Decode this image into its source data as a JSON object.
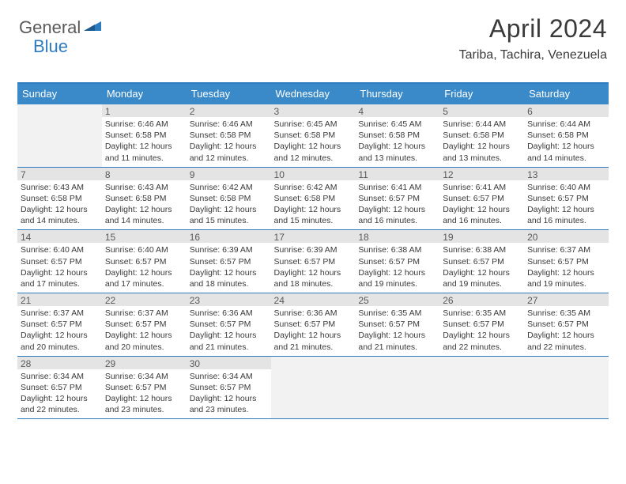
{
  "logo": {
    "general": "General",
    "blue": "Blue"
  },
  "title": "April 2024",
  "subtitle": "Tariba, Tachira, Venezuela",
  "colors": {
    "header_bg": "#3a8ac9",
    "accent_line": "#2e7cc0",
    "daynum_bg": "#e4e4e4",
    "empty_bg": "#f2f2f2",
    "text": "#3a3a3a"
  },
  "weekdays": [
    "Sunday",
    "Monday",
    "Tuesday",
    "Wednesday",
    "Thursday",
    "Friday",
    "Saturday"
  ],
  "weeks": [
    [
      {
        "n": "",
        "sr": "",
        "ss": "",
        "dl": ""
      },
      {
        "n": "1",
        "sr": "6:46 AM",
        "ss": "6:58 PM",
        "dl": "12 hours and 11 minutes."
      },
      {
        "n": "2",
        "sr": "6:46 AM",
        "ss": "6:58 PM",
        "dl": "12 hours and 12 minutes."
      },
      {
        "n": "3",
        "sr": "6:45 AM",
        "ss": "6:58 PM",
        "dl": "12 hours and 12 minutes."
      },
      {
        "n": "4",
        "sr": "6:45 AM",
        "ss": "6:58 PM",
        "dl": "12 hours and 13 minutes."
      },
      {
        "n": "5",
        "sr": "6:44 AM",
        "ss": "6:58 PM",
        "dl": "12 hours and 13 minutes."
      },
      {
        "n": "6",
        "sr": "6:44 AM",
        "ss": "6:58 PM",
        "dl": "12 hours and 14 minutes."
      }
    ],
    [
      {
        "n": "7",
        "sr": "6:43 AM",
        "ss": "6:58 PM",
        "dl": "12 hours and 14 minutes."
      },
      {
        "n": "8",
        "sr": "6:43 AM",
        "ss": "6:58 PM",
        "dl": "12 hours and 14 minutes."
      },
      {
        "n": "9",
        "sr": "6:42 AM",
        "ss": "6:58 PM",
        "dl": "12 hours and 15 minutes."
      },
      {
        "n": "10",
        "sr": "6:42 AM",
        "ss": "6:58 PM",
        "dl": "12 hours and 15 minutes."
      },
      {
        "n": "11",
        "sr": "6:41 AM",
        "ss": "6:57 PM",
        "dl": "12 hours and 16 minutes."
      },
      {
        "n": "12",
        "sr": "6:41 AM",
        "ss": "6:57 PM",
        "dl": "12 hours and 16 minutes."
      },
      {
        "n": "13",
        "sr": "6:40 AM",
        "ss": "6:57 PM",
        "dl": "12 hours and 16 minutes."
      }
    ],
    [
      {
        "n": "14",
        "sr": "6:40 AM",
        "ss": "6:57 PM",
        "dl": "12 hours and 17 minutes."
      },
      {
        "n": "15",
        "sr": "6:40 AM",
        "ss": "6:57 PM",
        "dl": "12 hours and 17 minutes."
      },
      {
        "n": "16",
        "sr": "6:39 AM",
        "ss": "6:57 PM",
        "dl": "12 hours and 18 minutes."
      },
      {
        "n": "17",
        "sr": "6:39 AM",
        "ss": "6:57 PM",
        "dl": "12 hours and 18 minutes."
      },
      {
        "n": "18",
        "sr": "6:38 AM",
        "ss": "6:57 PM",
        "dl": "12 hours and 19 minutes."
      },
      {
        "n": "19",
        "sr": "6:38 AM",
        "ss": "6:57 PM",
        "dl": "12 hours and 19 minutes."
      },
      {
        "n": "20",
        "sr": "6:37 AM",
        "ss": "6:57 PM",
        "dl": "12 hours and 19 minutes."
      }
    ],
    [
      {
        "n": "21",
        "sr": "6:37 AM",
        "ss": "6:57 PM",
        "dl": "12 hours and 20 minutes."
      },
      {
        "n": "22",
        "sr": "6:37 AM",
        "ss": "6:57 PM",
        "dl": "12 hours and 20 minutes."
      },
      {
        "n": "23",
        "sr": "6:36 AM",
        "ss": "6:57 PM",
        "dl": "12 hours and 21 minutes."
      },
      {
        "n": "24",
        "sr": "6:36 AM",
        "ss": "6:57 PM",
        "dl": "12 hours and 21 minutes."
      },
      {
        "n": "25",
        "sr": "6:35 AM",
        "ss": "6:57 PM",
        "dl": "12 hours and 21 minutes."
      },
      {
        "n": "26",
        "sr": "6:35 AM",
        "ss": "6:57 PM",
        "dl": "12 hours and 22 minutes."
      },
      {
        "n": "27",
        "sr": "6:35 AM",
        "ss": "6:57 PM",
        "dl": "12 hours and 22 minutes."
      }
    ],
    [
      {
        "n": "28",
        "sr": "6:34 AM",
        "ss": "6:57 PM",
        "dl": "12 hours and 22 minutes."
      },
      {
        "n": "29",
        "sr": "6:34 AM",
        "ss": "6:57 PM",
        "dl": "12 hours and 23 minutes."
      },
      {
        "n": "30",
        "sr": "6:34 AM",
        "ss": "6:57 PM",
        "dl": "12 hours and 23 minutes."
      },
      {
        "n": "",
        "sr": "",
        "ss": "",
        "dl": ""
      },
      {
        "n": "",
        "sr": "",
        "ss": "",
        "dl": ""
      },
      {
        "n": "",
        "sr": "",
        "ss": "",
        "dl": ""
      },
      {
        "n": "",
        "sr": "",
        "ss": "",
        "dl": ""
      }
    ]
  ],
  "labels": {
    "sunrise": "Sunrise:",
    "sunset": "Sunset:",
    "daylight": "Daylight:"
  }
}
